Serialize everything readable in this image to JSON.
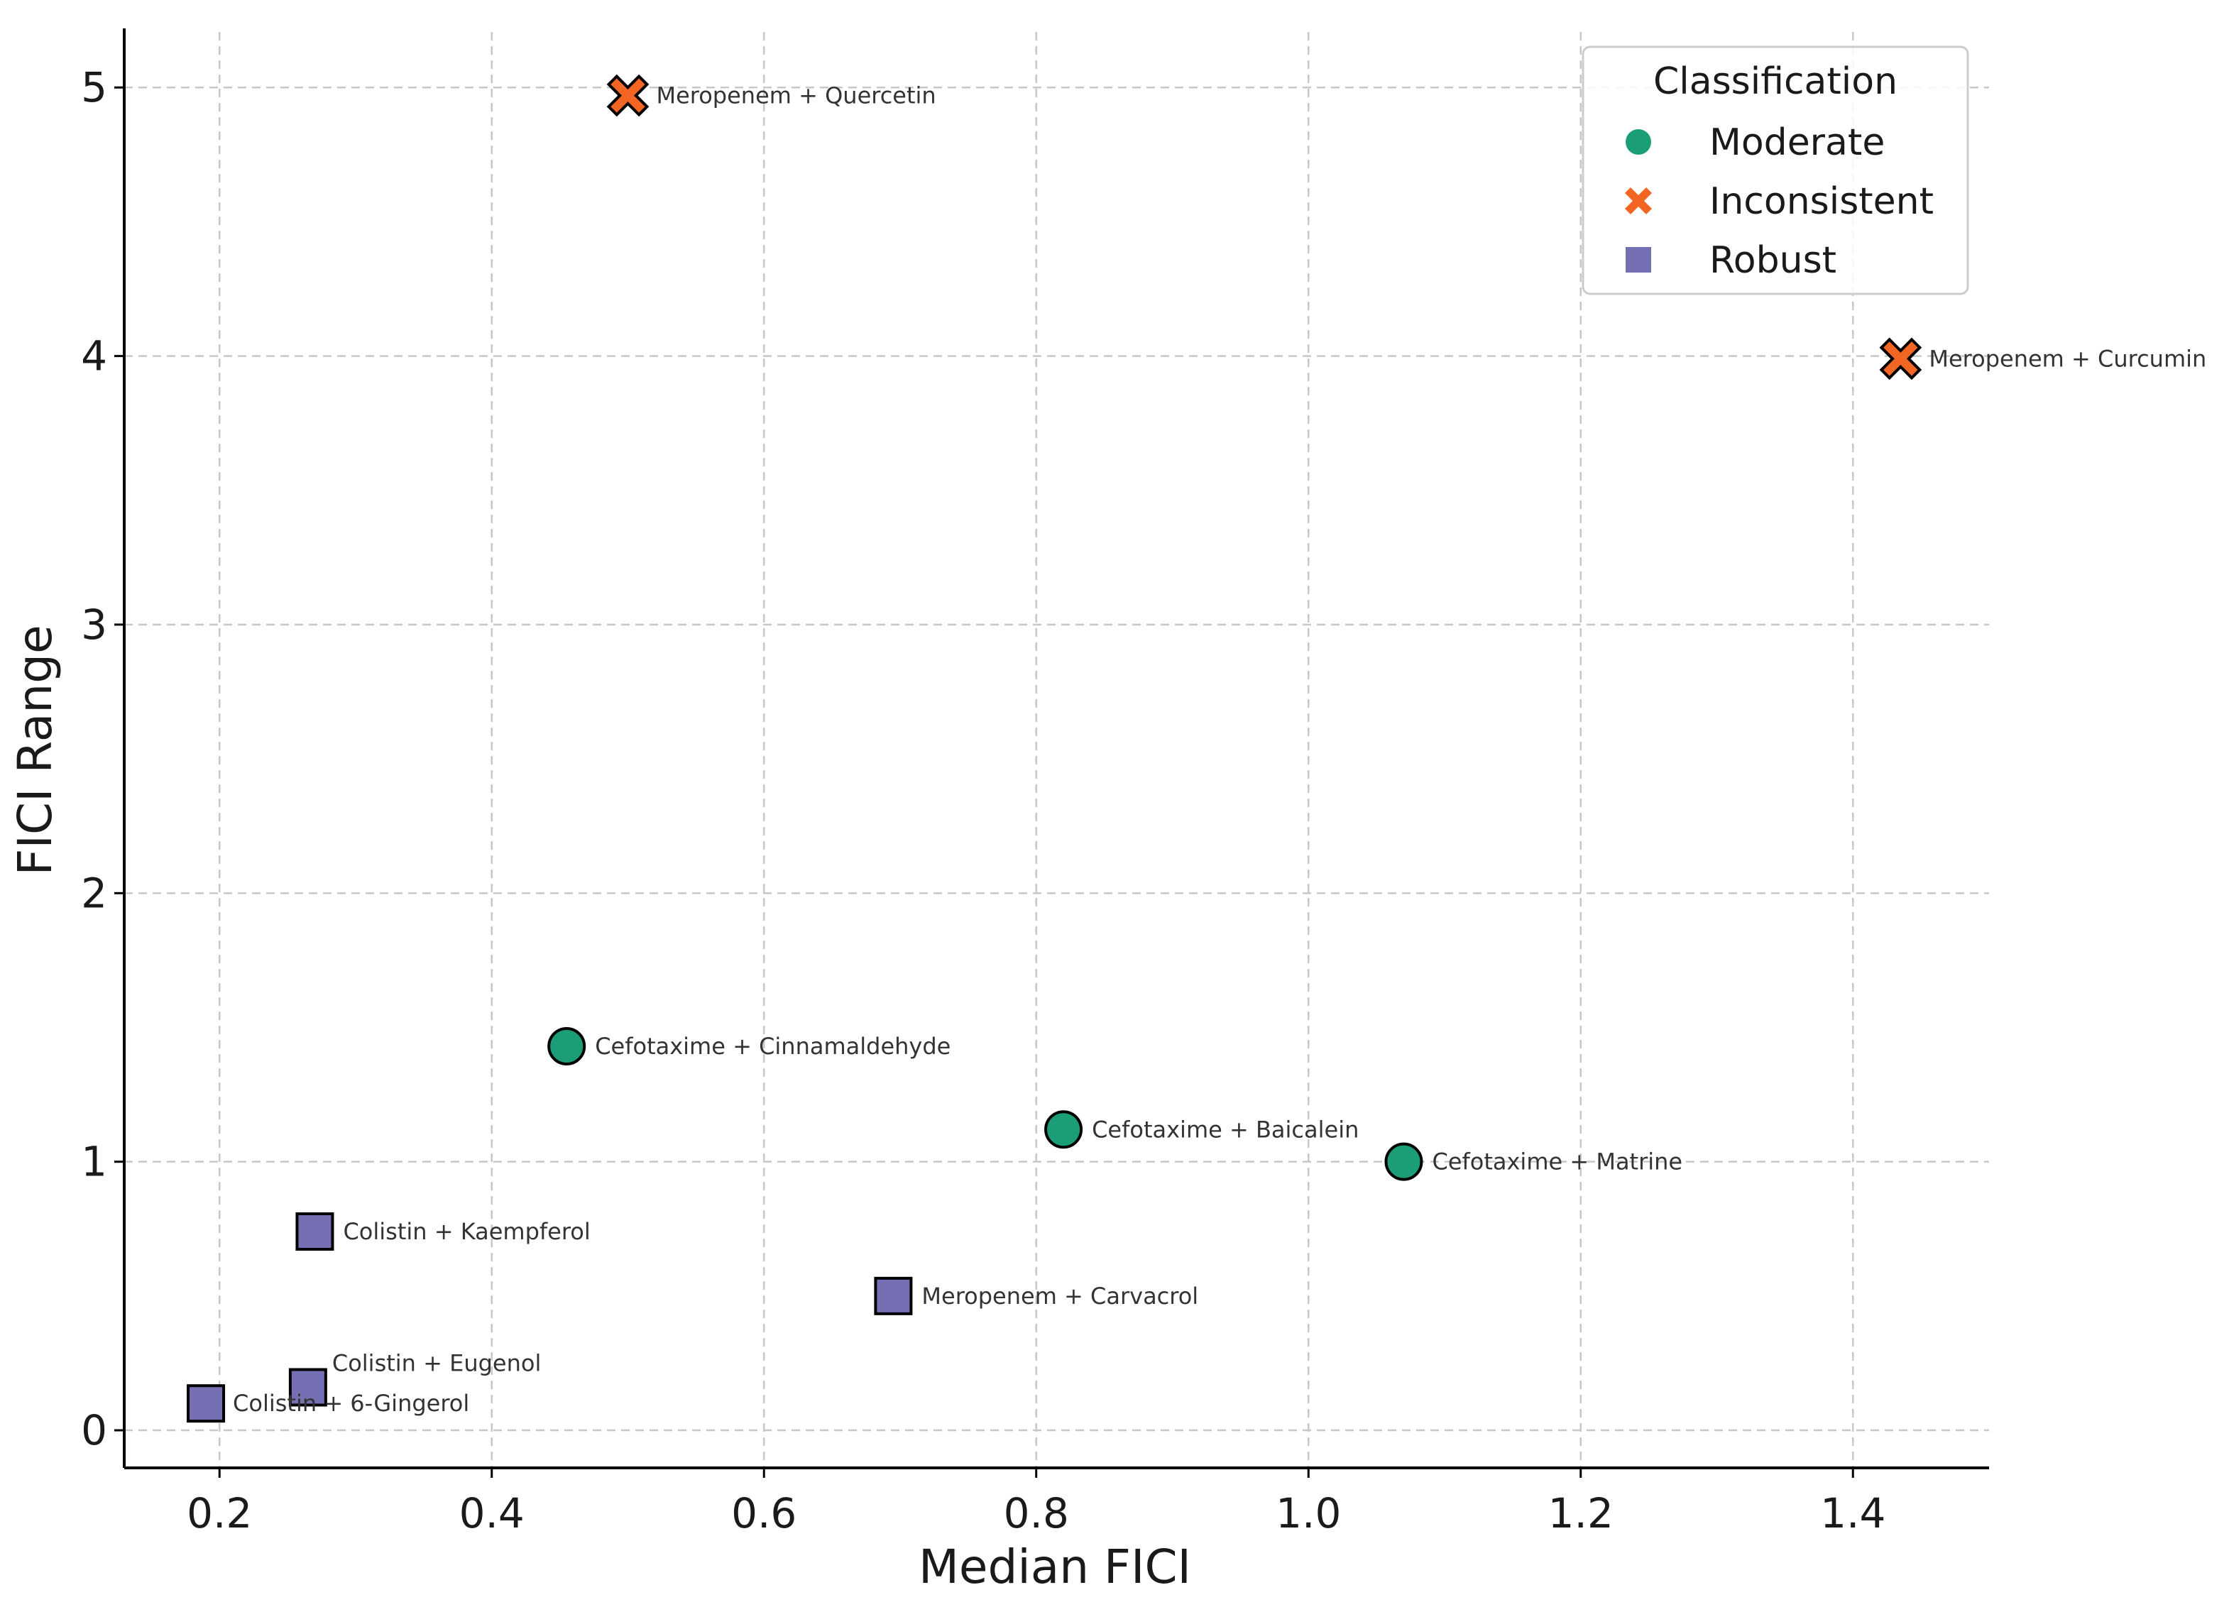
{
  "chart_data": {
    "type": "scatter",
    "xlabel": "Median FICI",
    "ylabel": "FICI Range",
    "xlim": [
      0.13,
      1.5
    ],
    "ylim": [
      -0.14,
      5.22
    ],
    "xticks": [
      0.2,
      0.4,
      0.6,
      0.8,
      1.0,
      1.2,
      1.4
    ],
    "xtick_labels": [
      "0.2",
      "0.4",
      "0.6",
      "0.8",
      "1.0",
      "1.2",
      "1.4"
    ],
    "yticks": [
      0,
      1,
      2,
      3,
      4,
      5
    ],
    "ytick_labels": [
      "0",
      "1",
      "2",
      "3",
      "4",
      "5"
    ],
    "grid": true,
    "legend": {
      "title": "Classification",
      "position": "top-right",
      "entries": [
        {
          "label": "Moderate",
          "marker": "circle",
          "color": "#1b9e77"
        },
        {
          "label": "Inconsistent",
          "marker": "x",
          "color": "#f26522"
        },
        {
          "label": "Robust",
          "marker": "square",
          "color": "#7570b3"
        }
      ]
    },
    "points": [
      {
        "label": "Meropenem + Quercetin",
        "x": 0.5,
        "y": 4.97,
        "class": "Inconsistent"
      },
      {
        "label": "Meropenem + Curcumin",
        "x": 1.435,
        "y": 3.99,
        "class": "Inconsistent"
      },
      {
        "label": "Cefotaxime + Cinnamaldehyde",
        "x": 0.455,
        "y": 1.43,
        "class": "Moderate"
      },
      {
        "label": "Cefotaxime + Baicalein",
        "x": 0.82,
        "y": 1.12,
        "class": "Moderate"
      },
      {
        "label": "Cefotaxime + Matrine",
        "x": 1.07,
        "y": 1.0,
        "class": "Moderate"
      },
      {
        "label": "Colistin + Kaempferol",
        "x": 0.27,
        "y": 0.74,
        "class": "Robust"
      },
      {
        "label": "Meropenem + Carvacrol",
        "x": 0.695,
        "y": 0.5,
        "class": "Robust"
      },
      {
        "label": "Colistin + Eugenol",
        "x": 0.265,
        "y": 0.16,
        "class": "Robust"
      },
      {
        "label": "Colistin + 6-Gingerol",
        "x": 0.19,
        "y": 0.1,
        "class": "Robust"
      }
    ]
  }
}
